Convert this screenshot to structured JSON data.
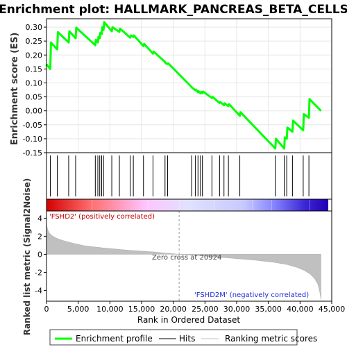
{
  "chart_data": {
    "type": "line",
    "title": "Enrichment plot: HALLMARK_PANCREAS_BETA_CELLS",
    "xlabel": "Rank in Ordered Dataset",
    "xlim": [
      0,
      45000
    ],
    "x_ticks": [
      "0",
      "5,000",
      "10,000",
      "15,000",
      "20,000",
      "25,000",
      "30,000",
      "35,000",
      "40,000",
      "45,000"
    ],
    "x_tick_values": [
      0,
      5000,
      10000,
      15000,
      20000,
      25000,
      30000,
      35000,
      40000,
      45000
    ],
    "panels": {
      "es": {
        "ylabel": "Enrichment score (ES)",
        "ylim": [
          -0.15,
          0.33
        ],
        "y_ticks": [
          "-0.15",
          "-0.10",
          "-0.05",
          "0.00",
          "0.05",
          "0.10",
          "0.15",
          "0.20",
          "0.25",
          "0.30"
        ],
        "y_tick_values": [
          -0.15,
          -0.1,
          -0.05,
          0.0,
          0.05,
          0.1,
          0.15,
          0.2,
          0.25,
          0.3
        ],
        "grid": true,
        "series": [
          {
            "name": "Enrichment profile",
            "color": "#00ff00",
            "x": [
              0,
              50,
              600,
              700,
              1700,
              1800,
              3500,
              3600,
              4600,
              4700,
              7700,
              7800,
              8100,
              8200,
              8400,
              8500,
              8700,
              8800,
              9000,
              9100,
              10300,
              10400,
              11500,
              11600,
              13200,
              13300,
              13700,
              13800,
              15300,
              15400,
              16800,
              16900,
              18700,
              18800,
              19100,
              19200,
              22900,
              23000,
              23500,
              23600,
              23900,
              24000,
              24300,
              24400,
              24600,
              24700,
              26100,
              26200,
              27300,
              27400,
              28000,
              28100,
              28700,
              28800,
              30500,
              30600,
              36100,
              36200,
              37500,
              37600,
              37900,
              38000,
              38800,
              38900,
              40500,
              40600,
              41400,
              41500,
              43300
            ],
            "y": [
              0.16,
              0.165,
              0.15,
              0.245,
              0.22,
              0.282,
              0.245,
              0.285,
              0.26,
              0.298,
              0.235,
              0.255,
              0.245,
              0.265,
              0.26,
              0.28,
              0.275,
              0.3,
              0.29,
              0.318,
              0.285,
              0.3,
              0.283,
              0.295,
              0.262,
              0.27,
              0.265,
              0.27,
              0.232,
              0.24,
              0.205,
              0.212,
              0.175,
              0.17,
              0.168,
              0.17,
              0.085,
              0.082,
              0.074,
              0.076,
              0.066,
              0.07,
              0.063,
              0.068,
              0.064,
              0.069,
              0.046,
              0.05,
              0.028,
              0.032,
              0.02,
              0.027,
              0.017,
              0.024,
              -0.018,
              -0.005,
              -0.135,
              -0.1,
              -0.135,
              -0.095,
              -0.1,
              -0.06,
              -0.075,
              -0.035,
              -0.07,
              -0.012,
              -0.025,
              0.042,
              0.0
            ]
          }
        ]
      },
      "hits": {
        "name": "Hits",
        "color": "#000000",
        "x": [
          600,
          1700,
          3500,
          4600,
          7700,
          8100,
          8400,
          8700,
          9000,
          10300,
          11500,
          13200,
          13700,
          15300,
          16800,
          18700,
          19100,
          22900,
          23500,
          23900,
          24300,
          24600,
          26100,
          27300,
          28000,
          28700,
          30500,
          36100,
          37500,
          37900,
          38800,
          40500,
          41400
        ]
      },
      "metric": {
        "name": "Ranking metric scores",
        "ylabel": "Ranked list metric (Signal2Noise)",
        "ylim": [
          -5.2,
          4.8
        ],
        "y_ticks": [
          "-4",
          "-2",
          "0",
          "2",
          "4"
        ],
        "y_tick_values": [
          -4,
          -2,
          0,
          2,
          4
        ],
        "color": "#c0c0c0",
        "x": [
          0,
          150,
          400,
          800,
          1500,
          2500,
          4000,
          6000,
          9000,
          13000,
          17000,
          20924,
          25000,
          29000,
          33000,
          36000,
          38000,
          39500,
          40700,
          41600,
          42300,
          42800,
          43100,
          43300
        ],
        "y": [
          3.4,
          2.8,
          2.4,
          2.1,
          1.8,
          1.55,
          1.25,
          0.95,
          0.7,
          0.45,
          0.25,
          0.0,
          -0.2,
          -0.42,
          -0.65,
          -0.9,
          -1.15,
          -1.45,
          -1.8,
          -2.2,
          -2.7,
          -3.3,
          -4.1,
          -5.0
        ]
      }
    },
    "heatmap_stops": [
      "#d40000",
      "#ff6f6f",
      "#ffc3ff",
      "#e1e1ff",
      "#c8c8ff",
      "#8a8aff",
      "#3a24d4",
      "#2200b4"
    ],
    "annotations": {
      "positive": "'FSHD2' (positively correlated)",
      "negative": "'FSHD2M' (negatively correlated)",
      "zero_cross": "Zero cross at 20924",
      "zero_cross_x": 20924
    },
    "legend": {
      "placement": "bottom",
      "items": [
        {
          "label": "Enrichment profile",
          "color": "#00ff00"
        },
        {
          "label": "Hits",
          "color": "#000000"
        },
        {
          "label": "Ranking metric scores",
          "color": "#c0c0c0"
        }
      ]
    }
  }
}
